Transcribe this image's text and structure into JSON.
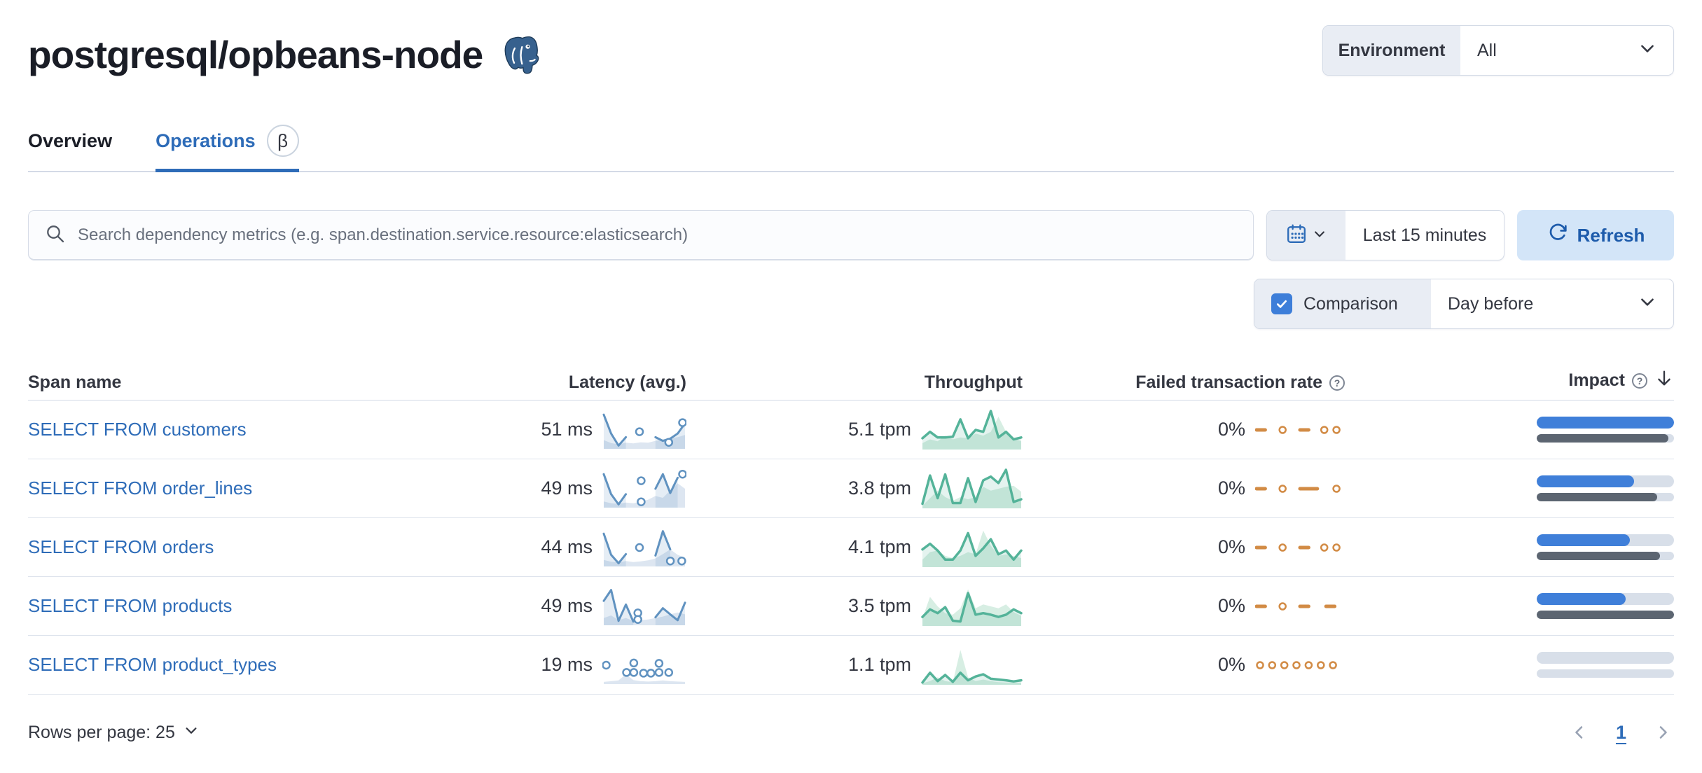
{
  "colors": {
    "accent_blue": "#2e6cb8",
    "checkbox_blue": "#3d7ed9",
    "refresh_button_bg": "#d3e5f8",
    "latency_series": "#6092c0",
    "throughput_series": "#54b399",
    "failed_series": "#d28b45",
    "impact_current": "#3f7fd9",
    "impact_previous": "#5c6571"
  },
  "page": {
    "title": "postgresql/opbeans-node"
  },
  "environment": {
    "label": "Environment",
    "value": "All"
  },
  "tabs": {
    "overview": "Overview",
    "operations": "Operations",
    "beta_badge": "β"
  },
  "search": {
    "placeholder": "Search dependency metrics (e.g. span.destination.service.resource:elasticsearch)"
  },
  "time_picker": {
    "value": "Last 15 minutes",
    "refresh_label": "Refresh"
  },
  "comparison": {
    "label": "Comparison",
    "checked": true,
    "value": "Day before"
  },
  "table": {
    "columns": {
      "span_name": "Span name",
      "latency": "Latency (avg.)",
      "throughput": "Throughput",
      "failed_rate": "Failed transaction rate",
      "impact": "Impact"
    },
    "rows": [
      {
        "span_name": "SELECT FROM customers",
        "latency": "51 ms",
        "throughput": "5.1 tpm",
        "failed_rate": "0%",
        "impact_current": 100,
        "impact_previous": 96,
        "latency_spark": {
          "line": [
            0.92,
            0.4,
            0.07,
            0.3,
            null,
            null,
            null,
            0.3,
            0.2,
            0.26,
            0.4,
            0.68
          ],
          "dots": [
            [
              0.44,
              0.45
            ],
            [
              0.8,
              0.16
            ],
            [
              0.97,
              0.7
            ]
          ],
          "prev": [
            0.22,
            0.14,
            0.1,
            0.15,
            0.13,
            0.16,
            0.15,
            0.2,
            0.22,
            0.27,
            0.3,
            0.36
          ]
        },
        "throughput_spark": {
          "line": [
            0.28,
            0.45,
            0.3,
            0.3,
            0.32,
            0.78,
            0.28,
            0.5,
            0.45,
            1.0,
            0.3,
            0.45,
            0.25,
            0.3
          ],
          "prev": [
            0.15,
            0.25,
            0.2,
            0.35,
            0.25,
            0.3,
            0.28,
            0.4,
            0.35,
            0.45,
            0.85,
            0.45,
            0.28,
            0.2
          ]
        },
        "failed_spark": {
          "line": [
            0.5,
            0.5,
            null,
            null,
            null,
            0.5,
            0.5,
            null,
            null,
            null,
            null
          ],
          "dots": [
            [
              0.3,
              0.5
            ],
            [
              0.78,
              0.5
            ],
            [
              0.92,
              0.5
            ]
          ]
        }
      },
      {
        "span_name": "SELECT FROM order_lines",
        "latency": "49 ms",
        "throughput": "3.8 tpm",
        "failed_rate": "0%",
        "impact_current": 71,
        "impact_previous": 88,
        "latency_spark": {
          "line": [
            0.9,
            0.35,
            0.07,
            0.35,
            null,
            null,
            null,
            0.5,
            0.9,
            0.38,
            0.8,
            null
          ],
          "dots": [
            [
              0.46,
              0.72
            ],
            [
              0.46,
              0.14
            ],
            [
              0.97,
              0.9
            ]
          ],
          "prev": [
            0.15,
            0.1,
            0.08,
            0.12,
            0.1,
            0.14,
            0.2,
            0.3,
            0.25,
            0.45,
            0.65,
            0.5
          ]
        },
        "throughput_spark": {
          "line": [
            0.1,
            0.85,
            0.25,
            0.88,
            0.12,
            0.12,
            0.78,
            0.15,
            0.72,
            0.82,
            0.65,
            1.0,
            0.15,
            0.22
          ],
          "prev": [
            0.05,
            0.25,
            0.45,
            0.28,
            0.18,
            0.28,
            0.22,
            0.28,
            0.55,
            0.45,
            0.5,
            0.55,
            0.58,
            0.42
          ]
        },
        "failed_spark": {
          "line": [
            0.5,
            0.5,
            null,
            null,
            null,
            0.5,
            0.5,
            0.5,
            null,
            null,
            null
          ],
          "dots": [
            [
              0.3,
              0.5
            ],
            [
              0.92,
              0.5
            ]
          ]
        }
      },
      {
        "span_name": "SELECT FROM orders",
        "latency": "44 ms",
        "throughput": "4.1 tpm",
        "failed_rate": "0%",
        "impact_current": 68,
        "impact_previous": 90,
        "latency_spark": {
          "line": [
            0.88,
            0.3,
            0.07,
            0.32,
            null,
            null,
            null,
            0.28,
            0.95,
            0.45,
            null,
            null
          ],
          "dots": [
            [
              0.44,
              0.5
            ],
            [
              0.82,
              0.13
            ],
            [
              0.96,
              0.13
            ]
          ],
          "prev": [
            0.16,
            0.11,
            0.09,
            0.13,
            0.1,
            0.12,
            0.15,
            0.2,
            0.32,
            0.45,
            0.3,
            0.22
          ]
        },
        "throughput_spark": {
          "line": [
            0.45,
            0.6,
            0.42,
            0.18,
            0.18,
            0.42,
            0.88,
            0.28,
            0.48,
            0.72,
            0.32,
            0.42,
            0.18,
            0.42
          ],
          "prev": [
            0.18,
            0.38,
            0.42,
            0.28,
            0.22,
            0.28,
            0.38,
            0.32,
            0.95,
            0.55,
            0.28,
            0.32,
            0.28,
            0.22
          ]
        },
        "failed_spark": {
          "line": [
            0.5,
            0.5,
            null,
            null,
            null,
            0.5,
            0.5,
            null,
            null,
            null,
            null
          ],
          "dots": [
            [
              0.3,
              0.5
            ],
            [
              0.78,
              0.5
            ],
            [
              0.92,
              0.5
            ]
          ]
        }
      },
      {
        "span_name": "SELECT FROM products",
        "latency": "49 ms",
        "throughput": "3.5 tpm",
        "failed_rate": "0%",
        "impact_current": 65,
        "impact_previous": 100,
        "latency_spark": {
          "line": [
            0.65,
            0.95,
            0.1,
            0.55,
            0.08,
            null,
            null,
            0.2,
            0.45,
            0.28,
            0.12,
            0.6
          ],
          "dots": [
            [
              0.42,
              0.32
            ],
            [
              0.42,
              0.14
            ]
          ],
          "prev": [
            0.18,
            0.25,
            0.12,
            0.18,
            0.1,
            0.12,
            0.14,
            0.18,
            0.22,
            0.28,
            0.33,
            0.28
          ]
        },
        "throughput_spark": {
          "line": [
            0.22,
            0.42,
            0.32,
            0.48,
            0.12,
            0.1,
            0.85,
            0.28,
            0.32,
            0.28,
            0.22,
            0.28,
            0.42,
            0.32
          ],
          "prev": [
            0.18,
            0.75,
            0.5,
            0.32,
            0.28,
            0.45,
            0.95,
            0.45,
            0.55,
            0.5,
            0.45,
            0.55,
            0.35,
            0.25
          ]
        },
        "failed_spark": {
          "line": [
            0.5,
            0.5,
            null,
            null,
            null,
            0.5,
            0.5,
            null,
            0.5,
            0.5,
            null
          ],
          "dots": [
            [
              0.3,
              0.5
            ]
          ]
        }
      },
      {
        "span_name": "SELECT FROM product_types",
        "latency": "19 ms",
        "throughput": "1.1 tpm",
        "failed_rate": "0%",
        "impact_current": 0,
        "impact_previous": 0,
        "latency_spark": {
          "line": null,
          "dots": [
            [
              0.03,
              0.5
            ],
            [
              0.28,
              0.3
            ],
            [
              0.37,
              0.56
            ],
            [
              0.37,
              0.3
            ],
            [
              0.49,
              0.28
            ],
            [
              0.58,
              0.28
            ],
            [
              0.68,
              0.55
            ],
            [
              0.68,
              0.3
            ],
            [
              0.8,
              0.3
            ]
          ],
          "prev": [
            0.04,
            0.06,
            0.08,
            0.25,
            0.09,
            0.06,
            0.05,
            0.06,
            0.08,
            0.06,
            0.05,
            0.04
          ]
        },
        "throughput_spark": {
          "line": [
            0.04,
            0.3,
            0.08,
            0.24,
            0.06,
            0.3,
            0.1,
            0.2,
            0.26,
            0.14,
            0.12,
            0.1,
            0.07,
            0.1
          ],
          "prev": [
            0.02,
            0.08,
            0.18,
            0.08,
            0.05,
            0.9,
            0.18,
            0.08,
            0.12,
            0.08,
            0.05,
            0.04,
            0.04,
            0.03
          ]
        },
        "failed_spark": {
          "line": null,
          "dots": [
            [
              0.04,
              0.5
            ],
            [
              0.18,
              0.5
            ],
            [
              0.32,
              0.5
            ],
            [
              0.46,
              0.5
            ],
            [
              0.6,
              0.5
            ],
            [
              0.74,
              0.5
            ],
            [
              0.88,
              0.5
            ]
          ]
        }
      }
    ]
  },
  "footer": {
    "rows_per_page_label": "Rows per page: 25",
    "page": "1"
  }
}
